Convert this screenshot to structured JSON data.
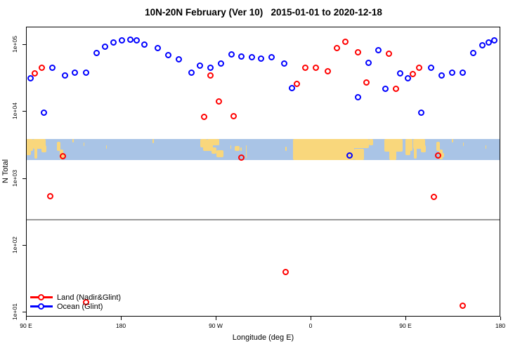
{
  "title": "10N-20N February (Ver 10)   2015-01-01 to 2020-12-18",
  "colors": {
    "land_series": "#ff0000",
    "ocean_series": "#0000ff",
    "band_ocean": "#a9c4e6",
    "band_land": "#f9d77c",
    "threshold_line": "#999999",
    "frame": "#000000"
  },
  "legend": {
    "items": [
      {
        "label": "Land (Nadir&Glint)",
        "color": "#ff0000"
      },
      {
        "label": "Ocean (Glint)",
        "color": "#0000ff"
      }
    ]
  },
  "chart_data": {
    "type": "scatter",
    "title": "10N-20N February (Ver 10)   2015-01-01 to 2020-12-18",
    "xlabel": "Longitude (deg E)",
    "ylabel": "N Total",
    "x_axis": {
      "range": [
        90,
        540
      ],
      "ticks": [
        90,
        180,
        270,
        360,
        450,
        540
      ],
      "tick_labels": [
        "90 E",
        "180",
        "90 W",
        "0",
        "90 E",
        "180"
      ]
    },
    "y_axis": {
      "scale": "log10",
      "range": [
        8,
        180000
      ],
      "ticks": [
        10,
        100,
        1000,
        10000,
        100000
      ],
      "tick_labels": [
        "1e+01",
        "1e+02",
        "1e+03",
        "1e+04",
        "1e+05"
      ]
    },
    "threshold_line": {
      "value": 240,
      "color": "#999999"
    },
    "map_band": {
      "value_top": 3800,
      "value_bottom": 1850,
      "ocean_color": "#a9c4e6",
      "land_color": "#f9d77c",
      "land_segments": [
        [
          90,
          97,
          0,
          0.55
        ],
        [
          90,
          95,
          0.5,
          0.78
        ],
        [
          97,
          109,
          0,
          0.45
        ],
        [
          98,
          100.5,
          0.4,
          0.92
        ],
        [
          104.5,
          109.5,
          0.28,
          0.62
        ],
        [
          119.5,
          122.5,
          0.12,
          0.55
        ],
        [
          122,
          125.5,
          0.5,
          0.95
        ],
        [
          125.5,
          127,
          0.65,
          0.88
        ],
        [
          134,
          135.2,
          0,
          0.15
        ],
        [
          144.6,
          145.4,
          0.15,
          0.32
        ],
        [
          166,
          167,
          0.3,
          0.45
        ],
        [
          210,
          211.5,
          0,
          0.2
        ],
        [
          255.5,
          262,
          0,
          0.38
        ],
        [
          258,
          267,
          0.18,
          0.55
        ],
        [
          262,
          272,
          0,
          0.3
        ],
        [
          266,
          271,
          0.38,
          0.7
        ],
        [
          270.5,
          277,
          0.52,
          0.85
        ],
        [
          271.5,
          273.5,
          0,
          0.28
        ],
        [
          283.8,
          285,
          0.3,
          0.45
        ],
        [
          288,
          292.5,
          0.33,
          0.55
        ],
        [
          293.5,
          295,
          0.38,
          0.55
        ],
        [
          298.4,
          299.6,
          0.3,
          0.9
        ],
        [
          336,
          337.5,
          0.35,
          0.55
        ],
        [
          343,
          401,
          0,
          1
        ],
        [
          401,
          411,
          0.45,
          1
        ],
        [
          398.5,
          415,
          0,
          0.42
        ],
        [
          415,
          419.5,
          0,
          0.28
        ],
        [
          430,
          447,
          0,
          0.6
        ],
        [
          434.5,
          441,
          0.55,
          1
        ],
        [
          450,
          457,
          0,
          0.55
        ],
        [
          450,
          455,
          0.5,
          0.78
        ],
        [
          457,
          469,
          0,
          0.45
        ],
        [
          458,
          460.5,
          0.4,
          0.92
        ],
        [
          464.5,
          469.5,
          0.28,
          0.62
        ],
        [
          479.5,
          482.5,
          0.12,
          0.55
        ],
        [
          482,
          485.5,
          0.5,
          0.95
        ],
        [
          485.5,
          487,
          0.65,
          0.88
        ],
        [
          494,
          495.2,
          0,
          0.15
        ],
        [
          504.6,
          505.4,
          0.15,
          0.32
        ],
        [
          526,
          527,
          0.3,
          0.45
        ]
      ]
    },
    "series": [
      {
        "name": "Land (Nadir&Glint)",
        "color": "#ff0000",
        "points": [
          [
            98,
            36300
          ],
          [
            105,
            45000
          ],
          [
            259,
            8130
          ],
          [
            265,
            33700
          ],
          [
            273,
            13800
          ],
          [
            287,
            8320
          ],
          [
            347,
            25700
          ],
          [
            355,
            44000
          ],
          [
            365,
            44000
          ],
          [
            376,
            39600
          ],
          [
            385,
            86500
          ],
          [
            393,
            108000
          ],
          [
            405,
            76600
          ],
          [
            413,
            27100
          ],
          [
            434,
            73000
          ],
          [
            441,
            21400
          ],
          [
            457,
            35400
          ],
          [
            463,
            44000
          ],
          [
            125,
            2140
          ],
          [
            294,
            2000
          ],
          [
            481,
            2190
          ],
          [
            113,
            530
          ],
          [
            477,
            525
          ],
          [
            336,
            39
          ],
          [
            504,
            12.2
          ],
          [
            147,
            14
          ]
        ]
      },
      {
        "name": "Ocean (Glint)",
        "color": "#0000ff",
        "points": [
          [
            94,
            30600
          ],
          [
            115,
            45000
          ],
          [
            127,
            34500
          ],
          [
            136,
            38000
          ],
          [
            147,
            37200
          ],
          [
            157,
            74800
          ],
          [
            165,
            90800
          ],
          [
            173,
            105000
          ],
          [
            181,
            113000
          ],
          [
            189,
            118000
          ],
          [
            195,
            113000
          ],
          [
            202,
            100000
          ],
          [
            215,
            86500
          ],
          [
            225,
            68000
          ],
          [
            235,
            60000
          ],
          [
            247,
            38000
          ],
          [
            255,
            48400
          ],
          [
            265,
            44000
          ],
          [
            275,
            52000
          ],
          [
            285,
            69600
          ],
          [
            294,
            66300
          ],
          [
            304,
            64600
          ],
          [
            313,
            61600
          ],
          [
            323,
            64600
          ],
          [
            335,
            52000
          ],
          [
            342,
            21900
          ],
          [
            405,
            16000
          ],
          [
            415,
            53300
          ],
          [
            424,
            82400
          ],
          [
            431,
            21400
          ],
          [
            445,
            36300
          ],
          [
            452,
            30600
          ],
          [
            474,
            45000
          ],
          [
            484,
            33700
          ],
          [
            494,
            38000
          ],
          [
            504,
            37200
          ],
          [
            514,
            74800
          ],
          [
            523,
            95300
          ],
          [
            529,
            105000
          ],
          [
            534,
            113000
          ],
          [
            107,
            9560
          ],
          [
            465,
            9560
          ],
          [
            397,
            2190
          ]
        ]
      }
    ],
    "legend_position": "bottom-left"
  }
}
